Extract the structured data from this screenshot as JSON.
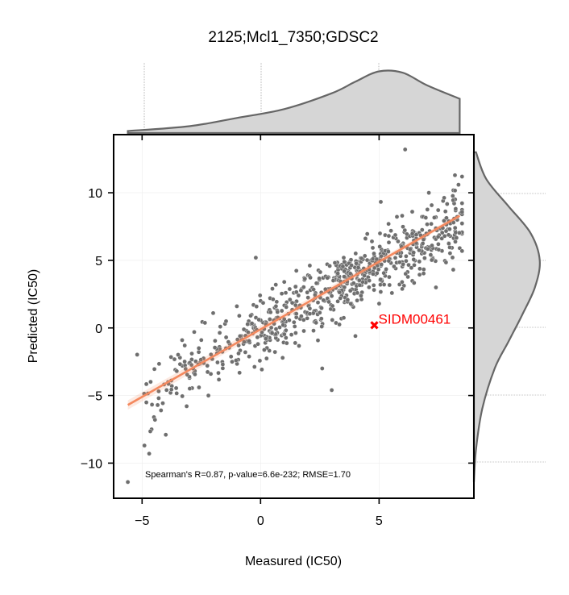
{
  "chart_data": {
    "type": "scatter",
    "title": "2125;Mcl1_7350;GDSC2",
    "xlabel": "Measured (IC50)",
    "ylabel": "Predicted (IC50)",
    "xlim": [
      -6.2,
      9.0
    ],
    "ylim": [
      -12.6,
      14.3
    ],
    "xticks": [
      -5,
      0,
      5
    ],
    "xtick_labels": [
      "−5",
      "0",
      "5"
    ],
    "yticks": [
      -10,
      -5,
      0,
      5,
      10
    ],
    "ytick_labels": [
      "−10",
      "−5",
      "0",
      "5",
      "10"
    ],
    "grid": true,
    "annotation": "Spearman's R=0.87, p-value=6.6e-232; RMSE=1.70",
    "fit_line": {
      "x": [
        -5.6,
        8.4
      ],
      "y": [
        -5.7,
        8.3
      ],
      "color": "#f4895f"
    },
    "highlight": {
      "label": "SIDM00461",
      "x": 4.8,
      "y": 0.2,
      "color": "#ff0000"
    },
    "marginal_top": {
      "type": "kde",
      "x": [
        -5.6,
        -3,
        -1,
        1,
        3,
        4,
        5,
        6,
        7,
        8.4
      ],
      "density": [
        0.03,
        0.1,
        0.22,
        0.35,
        0.58,
        0.75,
        0.9,
        0.88,
        0.7,
        0.5
      ]
    },
    "marginal_right": {
      "type": "kde",
      "y": [
        -11.4,
        -9,
        -6,
        -3,
        -1,
        1,
        3,
        5,
        7,
        9,
        11,
        13
      ],
      "density": [
        0.0,
        0.03,
        0.12,
        0.3,
        0.5,
        0.7,
        0.88,
        0.95,
        0.82,
        0.5,
        0.18,
        0.03
      ]
    },
    "point_color": "#6e6e6e",
    "n_points": 760,
    "points": [
      [
        -5.6,
        -11.4
      ],
      [
        -4.9,
        -8.7
      ],
      [
        -4.7,
        -9.3
      ],
      [
        -4.6,
        -7.5
      ],
      [
        -4.5,
        -6.6
      ],
      [
        -4.3,
        -5.2
      ],
      [
        -4.2,
        -6.1
      ],
      [
        -4.0,
        -7.9
      ],
      [
        -3.9,
        -4.0
      ],
      [
        -3.6,
        -3.1
      ],
      [
        -3.4,
        -2.2
      ],
      [
        -3.2,
        -1.3
      ],
      [
        -3.0,
        -3.7
      ],
      [
        -2.8,
        -0.3
      ],
      [
        -2.6,
        -4.4
      ],
      [
        -2.4,
        -2.6
      ],
      [
        -2.2,
        -5.0
      ],
      [
        -2.0,
        1.1
      ],
      [
        -1.8,
        -1.7
      ],
      [
        -1.5,
        0.3
      ],
      [
        -1.2,
        -2.5
      ],
      [
        -1.0,
        1.6
      ],
      [
        -0.8,
        -0.8
      ],
      [
        -0.5,
        0.5
      ],
      [
        -0.2,
        5.2
      ],
      [
        0.0,
        2.0
      ],
      [
        0.2,
        -1.1
      ],
      [
        0.5,
        2.9
      ],
      [
        0.8,
        0.7
      ],
      [
        1.0,
        3.4
      ],
      [
        1.3,
        -0.5
      ],
      [
        1.6,
        2.4
      ],
      [
        2.0,
        3.9
      ],
      [
        2.3,
        1.2
      ],
      [
        2.6,
        -3.0
      ],
      [
        3.0,
        -4.6
      ],
      [
        3.3,
        2.7
      ],
      [
        3.6,
        4.8
      ],
      [
        4.0,
        -0.6
      ],
      [
        4.3,
        3.6
      ],
      [
        4.7,
        6.4
      ],
      [
        5.0,
        1.8
      ],
      [
        5.4,
        7.7
      ],
      [
        5.7,
        4.4
      ],
      [
        6.1,
        13.2
      ],
      [
        6.4,
        8.6
      ],
      [
        6.8,
        5.5
      ],
      [
        7.1,
        10.0
      ],
      [
        7.4,
        3.0
      ],
      [
        7.7,
        9.4
      ],
      [
        8.0,
        6.8
      ],
      [
        8.2,
        11.3
      ],
      [
        8.4,
        5.9
      ],
      [
        8.5,
        11.2
      ],
      [
        -3.8,
        -4.8
      ],
      [
        -3.3,
        -2.8
      ],
      [
        -2.9,
        -1.9
      ],
      [
        -2.5,
        -0.9
      ],
      [
        -2.1,
        -3.4
      ],
      [
        -1.7,
        0.1
      ],
      [
        -1.3,
        -1.2
      ],
      [
        -0.9,
        0.9
      ],
      [
        -0.6,
        -0.2
      ],
      [
        -0.3,
        1.7
      ],
      [
        0.1,
        0.4
      ],
      [
        0.4,
        2.2
      ],
      [
        0.7,
        1.3
      ],
      [
        1.1,
        1.9
      ],
      [
        1.4,
        2.6
      ],
      [
        1.7,
        1.5
      ],
      [
        2.1,
        2.8
      ],
      [
        2.4,
        3.3
      ],
      [
        2.7,
        2.0
      ],
      [
        3.1,
        3.7
      ],
      [
        3.4,
        3.1
      ],
      [
        3.7,
        4.2
      ],
      [
        4.1,
        4.9
      ],
      [
        4.4,
        4.0
      ],
      [
        4.8,
        5.3
      ],
      [
        5.1,
        5.8
      ],
      [
        5.5,
        4.8
      ],
      [
        5.8,
        6.4
      ],
      [
        6.2,
        5.9
      ],
      [
        6.5,
        7.0
      ],
      [
        6.9,
        6.6
      ],
      [
        7.2,
        7.7
      ],
      [
        7.5,
        6.2
      ],
      [
        7.9,
        7.3
      ],
      [
        8.3,
        8.0
      ]
    ],
    "point_generation": "deterministic scatter of 760 points around fit line; representative sample listed above"
  }
}
